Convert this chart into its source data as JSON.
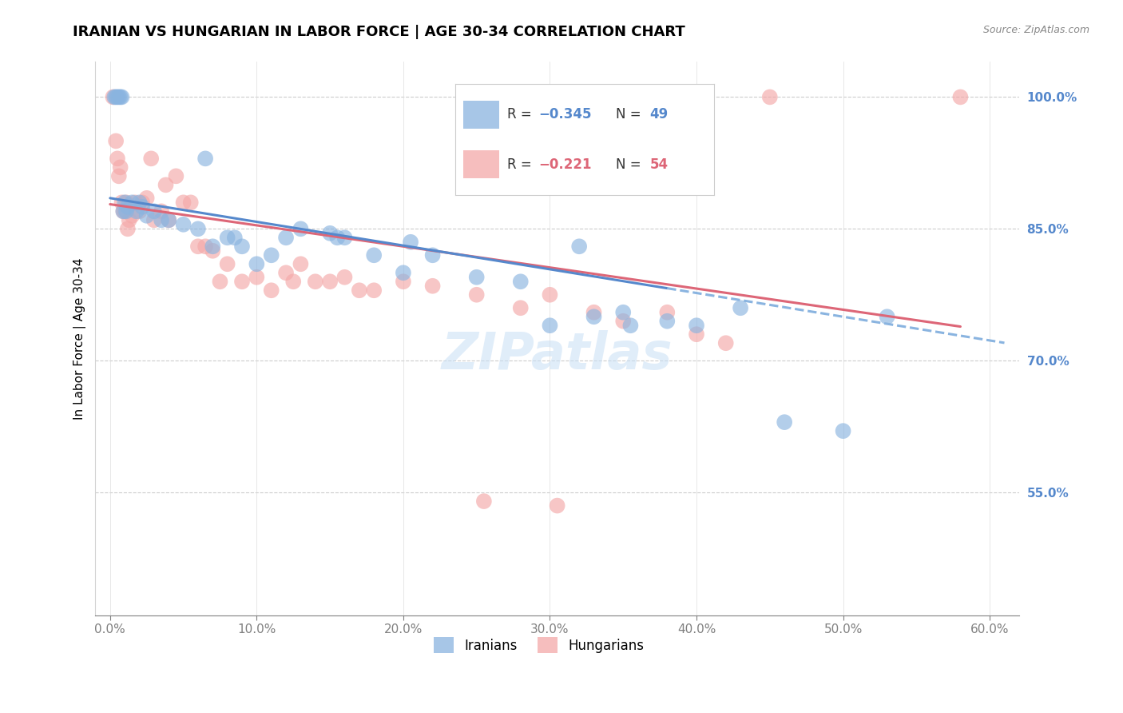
{
  "title": "IRANIAN VS HUNGARIAN IN LABOR FORCE | AGE 30-34 CORRELATION CHART",
  "source": "Source: ZipAtlas.com",
  "ylabel": "In Labor Force | Age 30-34",
  "blue_color": "#8ab4e0",
  "pink_color": "#f4a8a8",
  "blue_line_color": "#5588cc",
  "pink_line_color": "#dd6677",
  "blue_dash_color": "#8ab4e0",
  "watermark_color": "#c8dff5",
  "right_axis_color": "#5588cc",
  "legend_label_blue": "Iranians",
  "legend_label_pink": "Hungarians",
  "blue_r": "-0.345",
  "blue_n": "49",
  "pink_r": "-0.221",
  "pink_n": "54",
  "blue_intercept": 88.5,
  "blue_slope": -0.27,
  "pink_intercept": 87.8,
  "pink_slope": -0.24,
  "blue_dash_start": 38.0,
  "blue_dash_end": 61.0,
  "blue_scatter_x": [
    0.3,
    0.4,
    0.5,
    0.6,
    0.7,
    0.8,
    0.9,
    1.0,
    1.1,
    1.2,
    1.5,
    1.8,
    2.0,
    2.2,
    2.5,
    3.0,
    3.5,
    4.0,
    5.0,
    6.0,
    7.0,
    8.0,
    9.0,
    10.0,
    11.0,
    12.0,
    13.0,
    15.0,
    16.0,
    18.0,
    20.0,
    22.0,
    25.0,
    28.0,
    30.0,
    33.0,
    35.0,
    38.0,
    40.0,
    43.0,
    46.0,
    50.0,
    53.0,
    35.5,
    32.0,
    20.5,
    15.5,
    8.5,
    6.5
  ],
  "blue_scatter_y": [
    100.0,
    100.0,
    100.0,
    100.0,
    100.0,
    100.0,
    87.0,
    88.0,
    87.0,
    87.5,
    88.0,
    87.0,
    88.0,
    87.5,
    86.5,
    87.0,
    86.0,
    86.0,
    85.5,
    85.0,
    83.0,
    84.0,
    83.0,
    81.0,
    82.0,
    84.0,
    85.0,
    84.5,
    84.0,
    82.0,
    80.0,
    82.0,
    79.5,
    79.0,
    74.0,
    75.0,
    75.5,
    74.5,
    74.0,
    76.0,
    63.0,
    62.0,
    75.0,
    74.0,
    83.0,
    83.5,
    84.0,
    84.0,
    93.0
  ],
  "pink_scatter_x": [
    0.2,
    0.4,
    0.5,
    0.6,
    0.7,
    0.8,
    0.9,
    1.0,
    1.1,
    1.2,
    1.3,
    1.5,
    1.7,
    2.0,
    2.2,
    2.5,
    3.0,
    3.5,
    4.0,
    5.0,
    6.0,
    7.0,
    8.0,
    9.0,
    10.0,
    11.0,
    12.0,
    13.0,
    14.0,
    15.0,
    16.0,
    18.0,
    20.0,
    22.0,
    25.0,
    28.0,
    30.0,
    33.0,
    35.0,
    38.0,
    40.0,
    42.0,
    45.0,
    25.5,
    30.5,
    58.0,
    3.8,
    4.5,
    5.5,
    6.5,
    7.5,
    2.8,
    12.5,
    17.0
  ],
  "pink_scatter_y": [
    100.0,
    95.0,
    93.0,
    91.0,
    92.0,
    88.0,
    87.0,
    87.0,
    88.0,
    85.0,
    86.0,
    86.5,
    88.0,
    87.0,
    88.0,
    88.5,
    86.0,
    87.0,
    86.0,
    88.0,
    83.0,
    82.5,
    81.0,
    79.0,
    79.5,
    78.0,
    80.0,
    81.0,
    79.0,
    79.0,
    79.5,
    78.0,
    79.0,
    78.5,
    77.5,
    76.0,
    77.5,
    75.5,
    74.5,
    75.5,
    73.0,
    72.0,
    100.0,
    54.0,
    53.5,
    100.0,
    90.0,
    91.0,
    88.0,
    83.0,
    79.0,
    93.0,
    79.0,
    78.0
  ],
  "xlim_min": -1.0,
  "xlim_max": 62.0,
  "ylim_min": 41.0,
  "ylim_max": 104.0,
  "yticks": [
    55.0,
    70.0,
    85.0,
    100.0
  ],
  "xticks": [
    0.0,
    10.0,
    20.0,
    30.0,
    40.0,
    50.0,
    60.0
  ],
  "title_fontsize": 13,
  "axis_label_fontsize": 11,
  "tick_fontsize": 11,
  "scatter_size": 200,
  "scatter_alpha": 0.65,
  "line_width": 2.2
}
